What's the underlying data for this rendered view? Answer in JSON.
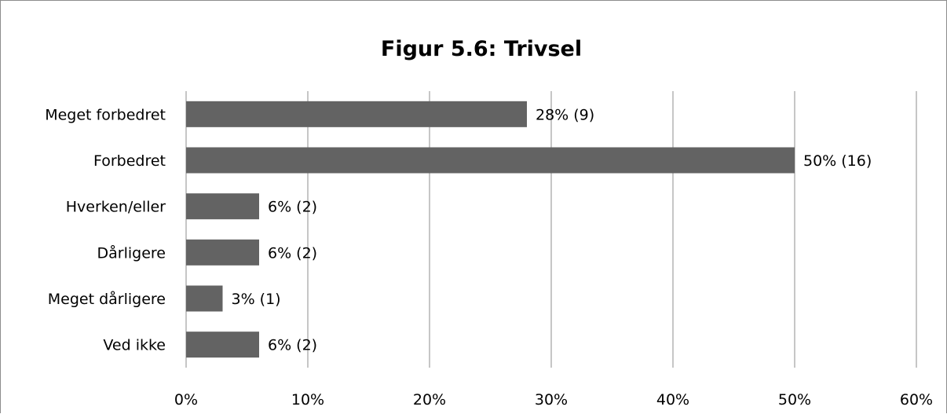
{
  "chart_data": {
    "type": "bar",
    "orientation": "horizontal",
    "title": "Figur 5.6: Trivsel",
    "xlabel": "",
    "ylabel": "",
    "categories": [
      "Meget  forbedret",
      "Forbedret",
      "Hverken/eller",
      "Dårligere",
      "Meget dårligere",
      "Ved ikke"
    ],
    "values": [
      28,
      50,
      6,
      6,
      3,
      6
    ],
    "data_labels": [
      "28% (9)",
      "50% (16)",
      "6% (2)",
      "6% (2)",
      "3% (1)",
      "6% (2)"
    ],
    "xlim": [
      0,
      60
    ],
    "xticks": [
      0,
      10,
      20,
      30,
      40,
      50,
      60
    ],
    "xtick_labels": [
      "0%",
      "10%",
      "20%",
      "30%",
      "40%",
      "50%",
      "60%"
    ],
    "grid": "vertical",
    "legend": "none",
    "bar_color": "#636363",
    "grid_color": "#8c8c8c"
  }
}
